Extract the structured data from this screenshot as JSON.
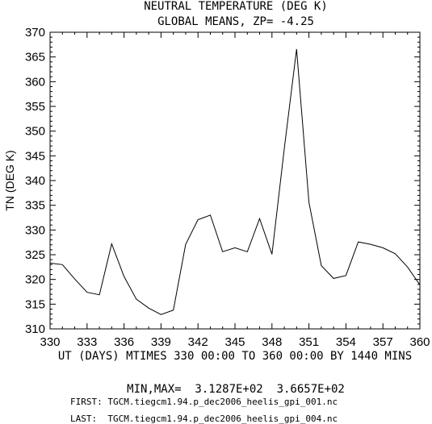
{
  "chart_data": {
    "type": "line",
    "title": "NEUTRAL TEMPERATURE (DEG K)",
    "subtitle": "GLOBAL MEANS, ZP= -4.25",
    "ylabel": "TN (DEG K)",
    "xlabel": "UT (DAYS) MTIMES 330 00:00 TO 360 00:00 BY 1440 MINS",
    "xlim": [
      330,
      360
    ],
    "ylim": [
      310,
      370
    ],
    "xticks": [
      330,
      333,
      336,
      339,
      342,
      345,
      348,
      351,
      354,
      357,
      360
    ],
    "yticks": [
      310,
      315,
      320,
      325,
      330,
      335,
      340,
      345,
      350,
      355,
      360,
      365,
      370
    ],
    "grid": false,
    "series": [
      {
        "x": [
          330,
          331,
          332,
          333,
          334,
          335,
          336,
          337,
          338,
          339,
          340,
          341,
          342,
          343,
          344,
          345,
          346,
          347,
          348,
          349,
          350,
          351,
          352,
          353,
          354,
          355,
          356,
          357,
          358,
          359,
          360
        ],
        "values": [
          323.3,
          323.0,
          320.1,
          317.4,
          316.9,
          327.2,
          320.6,
          316.0,
          314.2,
          312.9,
          313.8,
          327.1,
          332.1,
          333.0,
          325.6,
          326.4,
          325.6,
          332.3,
          325.1,
          346.5,
          366.6,
          335.6,
          322.8,
          320.2,
          320.8,
          327.6,
          327.1,
          326.4,
          325.2,
          322.5,
          318.9
        ]
      }
    ]
  },
  "minmax_text": "MIN,MAX=  3.1287E+02  3.6657E+02",
  "first_file": "FIRST: TGCM.tiegcm1.94.p_dec2006_heelis_gpi_001.nc",
  "last_file": "LAST:  TGCM.tiegcm1.94.p_dec2006_heelis_gpi_004.nc"
}
